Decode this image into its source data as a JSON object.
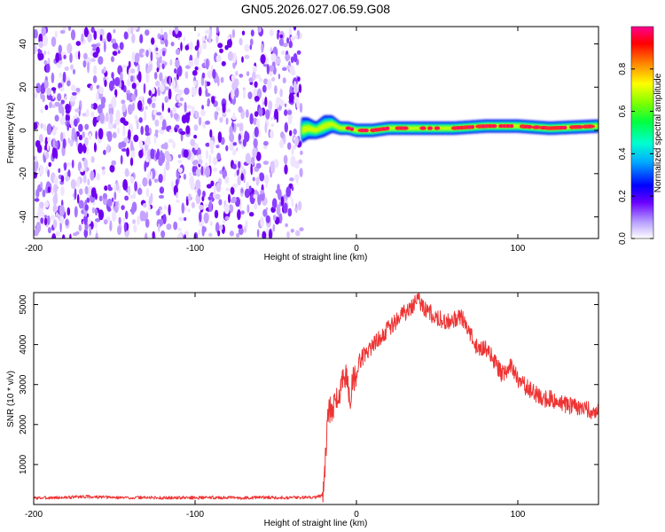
{
  "figure": {
    "title": "GN05.2026.027.06.59.G08"
  },
  "chart_data": [
    {
      "type": "heatmap",
      "title": "GN05.2026.027.06.59.G08",
      "xlabel": "Height of straight line (km)",
      "ylabel": "Frequency (Hz)",
      "xlim": [
        -200,
        150
      ],
      "ylim": [
        -50,
        48
      ],
      "x_ticks": [
        -200,
        -100,
        0,
        100
      ],
      "y_ticks": [
        -40,
        -20,
        0,
        20,
        40
      ],
      "grid": false,
      "colorbar": {
        "label": "Normalized spectral amplitude",
        "range": [
          0.0,
          1.0
        ],
        "ticks": [
          "0.0",
          "0.2",
          "0.4",
          "0.6",
          "0.8"
        ],
        "tick_values": [
          0.0,
          0.2,
          0.4,
          0.6,
          0.8
        ],
        "colors": [
          "#ffffff",
          "#7a00ff",
          "#0000ff",
          "#00c8ff",
          "#00ff80",
          "#80ff00",
          "#ffff00",
          "#ff8000",
          "#ff0000",
          "#ff00a0"
        ]
      },
      "noise_region": {
        "x_range": [
          -200,
          -34
        ],
        "freq_range": [
          -50,
          48
        ],
        "amplitude": "low (0.0-0.2)"
      },
      "signal_band": {
        "x": [
          -34,
          -30,
          -25,
          -20,
          -15,
          -10,
          -5,
          0,
          10,
          20,
          40,
          60,
          80,
          100,
          120,
          150
        ],
        "center_freq": [
          0,
          1,
          0,
          2,
          3,
          1,
          1,
          0,
          0,
          1,
          1,
          1,
          2,
          2,
          1,
          2
        ],
        "half_width": [
          6,
          5,
          4,
          5,
          4,
          3,
          3,
          3,
          3,
          3,
          3,
          3,
          3,
          3,
          3,
          3
        ],
        "peak_amplitude": [
          0.3,
          0.4,
          0.45,
          0.55,
          0.7,
          0.7,
          0.75,
          0.85,
          0.9,
          0.85,
          0.8,
          0.85,
          0.9,
          0.9,
          0.9,
          0.9
        ]
      }
    },
    {
      "type": "line",
      "title": "",
      "xlabel": "Height of straight line (km)",
      "ylabel": "SNR (10 * v/v)",
      "xlim": [
        -200,
        150
      ],
      "ylim": [
        0,
        5300
      ],
      "x_ticks": [
        -200,
        -100,
        0,
        100
      ],
      "y_ticks": [
        1000,
        2000,
        3000,
        4000,
        5000
      ],
      "grid": false,
      "color": "#ee3333",
      "series": [
        {
          "x": [
            -200,
            -190,
            -180,
            -170,
            -160,
            -150,
            -140,
            -130,
            -120,
            -110,
            -100,
            -90,
            -80,
            -70,
            -60,
            -50,
            -40,
            -30,
            -25,
            -21,
            -20,
            -18,
            -16,
            -14,
            -12,
            -10,
            -8,
            -6,
            -4,
            -2,
            0,
            2,
            4,
            6,
            8,
            10,
            15,
            20,
            25,
            30,
            35,
            38,
            40,
            45,
            50,
            55,
            60,
            65,
            70,
            75,
            80,
            85,
            90,
            92,
            95,
            100,
            105,
            110,
            115,
            120,
            125,
            130,
            135,
            140,
            145,
            150
          ],
          "values": [
            160,
            170,
            175,
            200,
            185,
            175,
            170,
            175,
            165,
            170,
            170,
            175,
            170,
            165,
            180,
            175,
            175,
            180,
            190,
            220,
            500,
            2200,
            2400,
            2450,
            2600,
            2800,
            3400,
            3100,
            2600,
            3100,
            3200,
            3600,
            3700,
            3800,
            3900,
            4000,
            4200,
            4400,
            4600,
            4800,
            5000,
            5200,
            5000,
            4800,
            4700,
            4550,
            4600,
            4700,
            4300,
            3900,
            3950,
            3600,
            3250,
            3300,
            3500,
            3150,
            2950,
            2800,
            2650,
            2650,
            2550,
            2500,
            2450,
            2450,
            2350,
            2300
          ]
        }
      ]
    }
  ]
}
